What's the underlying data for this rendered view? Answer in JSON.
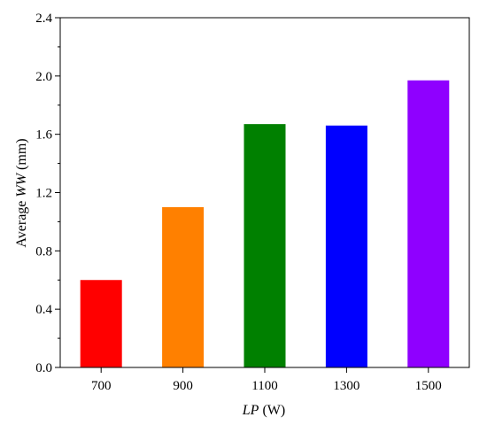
{
  "chart_data": {
    "type": "bar",
    "categories": [
      "700",
      "900",
      "1100",
      "1300",
      "1500"
    ],
    "values": [
      0.6,
      1.1,
      1.67,
      1.66,
      1.97
    ],
    "colors": [
      "#ff0000",
      "#ff8000",
      "#008000",
      "#0000ff",
      "#8f00ff"
    ],
    "title": "",
    "xlabel": {
      "italic": "LP",
      "rest": " (W)"
    },
    "ylabel": {
      "prefix": "Average ",
      "italic": "WW",
      "suffix": " (mm)"
    },
    "ylim": [
      0,
      2.4
    ],
    "yticks": [
      "0.0",
      "0.4",
      "0.8",
      "1.2",
      "1.6",
      "2.0",
      "2.4"
    ],
    "grid": false,
    "legend": "none"
  }
}
